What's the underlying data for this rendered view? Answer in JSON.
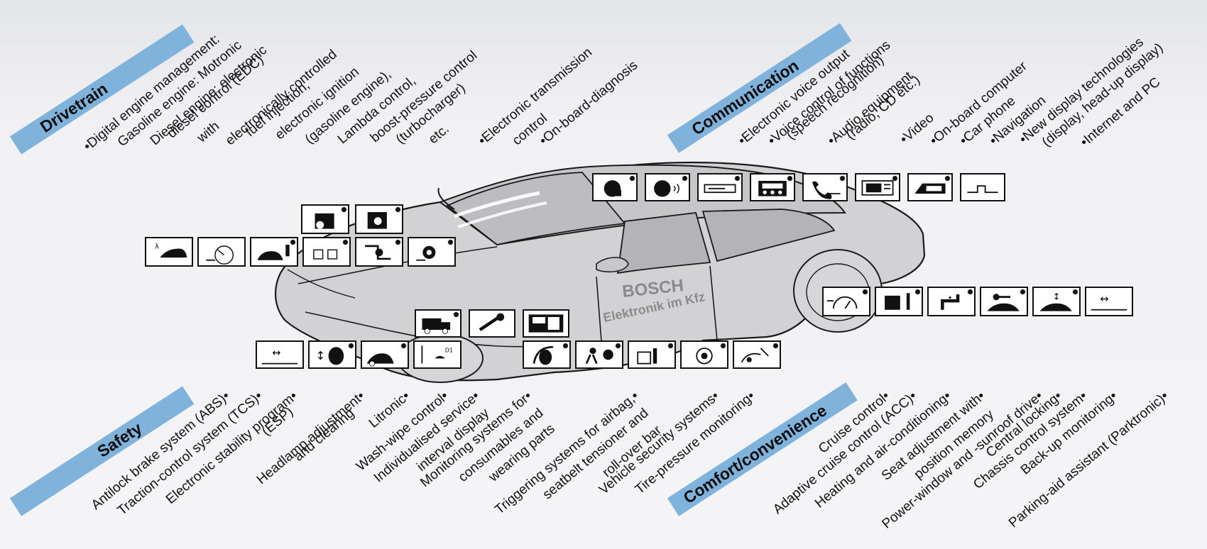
{
  "colors": {
    "band": "#7fb3dc",
    "car_body": "#d3d3d5",
    "car_line": "#1a1a1a",
    "background": "#f2f2f4"
  },
  "car": {
    "brand": "BOSCH",
    "brand_subtitle": "Elektronik im Kfz"
  },
  "drivetrain": {
    "title": "Drivetrain",
    "items": [
      "•Digital engine management:",
      "Gasoline engine: Motronic",
      "Diesel engine: electronic",
      "diesel control (EDC)",
      "with",
      "electronically controlled",
      "fuel injection,",
      "electronic ignition",
      "(gasoline engine),",
      "Lambda control,",
      "boost-pressure control",
      "(turbocharger)",
      "etc.",
      "•Electronic transmission",
      "control",
      "•On-board-diagnosis"
    ]
  },
  "communication": {
    "title": "Communication",
    "items": [
      "•Electronic voice output",
      "•Voice control of functions",
      "(speech recognition)",
      "•Audio equipment",
      "(radio, CD etc.)",
      "•Video",
      "•On-board computer",
      "•Car phone",
      "•Navigation",
      "•New display technologies",
      "(display, head-up display)",
      "•Internet and PC"
    ]
  },
  "safety": {
    "title": "Safety",
    "items": [
      "Antilock brake system (ABS)•",
      "Traction-control system (TCS)•",
      "Electronic stability program•",
      "(ESP)",
      "Headlamp adjustment•",
      "and clearing",
      "Litronic•",
      "Wash-wipe control•",
      "Individualised service•",
      "interval display",
      "Monitoring systems for•",
      "consumables and",
      "wearing parts",
      "Triggering systems for airbag,•",
      "seatbelt tensioner and",
      "roll-over bar",
      "Vehicle security systems•",
      "Tire-pressure monitoring•"
    ]
  },
  "comfort": {
    "title": "Comfort/convenience",
    "items": [
      "Cruise control•",
      "Adaptive cruise control (ACC)•",
      "Heating and air-conditioning•",
      "Seat adjustment with•",
      "position memory",
      "Power-window and -sunroof drive•",
      "Central locking•",
      "Chassis control system•",
      "Back-up monitoring•",
      "Parking-aid assistant (Parktronic)•"
    ]
  },
  "icons": {
    "top_row": [
      "voice-output-icon",
      "voice-control-icon",
      "audio-icon",
      "onboard-computer-icon",
      "car-phone-icon",
      "navigation-icon",
      "display-icon",
      "signal-pulse-icon"
    ],
    "left_upper": [
      "engine-icon",
      "transmission-icon"
    ],
    "left_row": [
      "lambda-car-icon",
      "gauge-icon",
      "car-traffic-light-icon",
      "fuel-injection-icon",
      "gear-shift-icon",
      "diagnosis-gear-icon"
    ],
    "front_middle": [
      "service-truck-icon",
      "wrench-icon",
      "service-display-icon"
    ],
    "bottom_row": [
      "abs-icon",
      "tcs-icon",
      "esp-icon",
      "headlamp-icon",
      "wiper-icon",
      "airbag-icon",
      "security-icon",
      "seatbelt-icon",
      "tire-pressure-icon",
      "rollover-icon"
    ],
    "right_row": [
      "cruise-control-icon",
      "climate-icon",
      "seat-adjust-icon",
      "central-locking-icon",
      "chassis-icon",
      "parking-aid-icon"
    ]
  }
}
